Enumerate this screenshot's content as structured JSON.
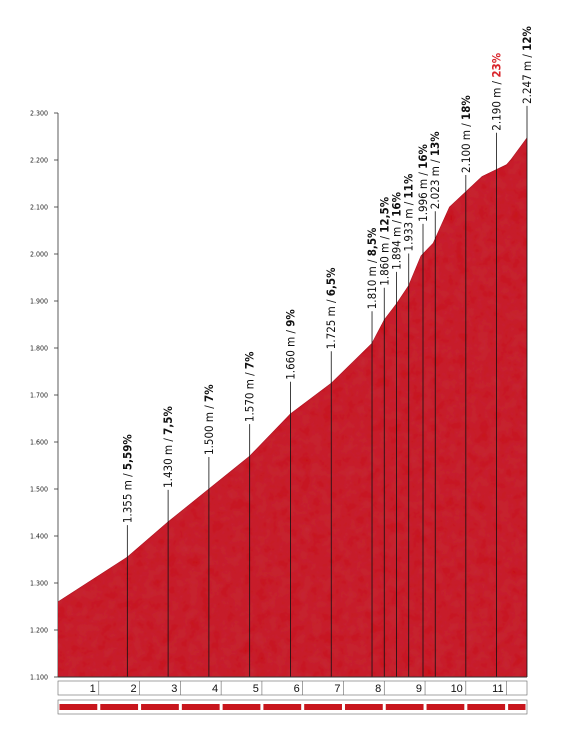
{
  "chart_data": {
    "type": "area",
    "title": "",
    "xlabel": "",
    "ylabel": "",
    "xlim": [
      0,
      11.5
    ],
    "ylim": [
      1100,
      2300
    ],
    "y_ticks": [
      {
        "value": 1100,
        "label": "1.100"
      },
      {
        "value": 1200,
        "label": "1.200"
      },
      {
        "value": 1300,
        "label": "1.300"
      },
      {
        "value": 1400,
        "label": "1.400"
      },
      {
        "value": 1500,
        "label": "1.500"
      },
      {
        "value": 1600,
        "label": "1.600"
      },
      {
        "value": 1700,
        "label": "1.700"
      },
      {
        "value": 1800,
        "label": "1.800"
      },
      {
        "value": 1900,
        "label": "1.900"
      },
      {
        "value": 2000,
        "label": "2.000"
      },
      {
        "value": 2100,
        "label": "2.100"
      },
      {
        "value": 2200,
        "label": "2.200"
      },
      {
        "value": 2300,
        "label": "2.300"
      }
    ],
    "x_ticks": [
      {
        "value": 1,
        "label": "1"
      },
      {
        "value": 2,
        "label": "2"
      },
      {
        "value": 3,
        "label": "3"
      },
      {
        "value": 4,
        "label": "4"
      },
      {
        "value": 5,
        "label": "5"
      },
      {
        "value": 6,
        "label": "6"
      },
      {
        "value": 7,
        "label": "7"
      },
      {
        "value": 8,
        "label": "8"
      },
      {
        "value": 9,
        "label": "9"
      },
      {
        "value": 10,
        "label": "10"
      },
      {
        "value": 11,
        "label": "11"
      }
    ],
    "profile": {
      "x": [
        0,
        1.7,
        2.7,
        3.7,
        4.7,
        5.7,
        6.7,
        7.7,
        8.0,
        8.3,
        8.6,
        8.9,
        9.2,
        9.6,
        10.4,
        11.0,
        11.1,
        11.5
      ],
      "y": [
        1260,
        1355,
        1430,
        1500,
        1570,
        1660,
        1725,
        1810,
        1860,
        1894,
        1933,
        1996,
        2023,
        2100,
        2165,
        2190,
        2200,
        2247
      ]
    },
    "annotations": [
      {
        "x": 1.7,
        "y": 1355,
        "elev": "1.355 m / ",
        "grad": "5,59%",
        "highlight": false
      },
      {
        "x": 2.7,
        "y": 1430,
        "elev": "1.430 m / ",
        "grad": "7,5%",
        "highlight": false
      },
      {
        "x": 3.7,
        "y": 1500,
        "elev": "1.500 m / ",
        "grad": "7%",
        "highlight": false
      },
      {
        "x": 4.7,
        "y": 1570,
        "elev": "1.570 m / ",
        "grad": "7%",
        "highlight": false
      },
      {
        "x": 5.7,
        "y": 1660,
        "elev": "1.660 m / ",
        "grad": "9%",
        "highlight": false
      },
      {
        "x": 6.7,
        "y": 1725,
        "elev": "1.725 m / ",
        "grad": "6,5%",
        "highlight": false
      },
      {
        "x": 7.7,
        "y": 1810,
        "elev": "1.810 m / ",
        "grad": "8,5%",
        "highlight": false
      },
      {
        "x": 8.0,
        "y": 1860,
        "elev": "1.860 m / ",
        "grad": "12,5%",
        "highlight": false
      },
      {
        "x": 8.3,
        "y": 1894,
        "elev": "1.894 m / ",
        "grad": "16%",
        "highlight": false
      },
      {
        "x": 8.6,
        "y": 1933,
        "elev": "1.933 m / ",
        "grad": "11%",
        "highlight": false
      },
      {
        "x": 8.95,
        "y": 1996,
        "elev": "1.996 m / ",
        "grad": "16%",
        "highlight": false
      },
      {
        "x": 9.25,
        "y": 2023,
        "elev": "2.023 m / ",
        "grad": "13%",
        "highlight": false
      },
      {
        "x": 10.0,
        "y": 2100,
        "elev": "2.100 m / ",
        "grad": "18%",
        "highlight": false
      },
      {
        "x": 10.75,
        "y": 2190,
        "elev": "2.190 m / ",
        "grad": "23%",
        "highlight": true
      },
      {
        "x": 11.5,
        "y": 2247,
        "elev": "2.247 m / ",
        "grad": "12%",
        "highlight": false
      }
    ],
    "colors": {
      "fill": "#c8161d",
      "fill_dark": "#a30f15",
      "highlight": "#d9232a"
    }
  }
}
